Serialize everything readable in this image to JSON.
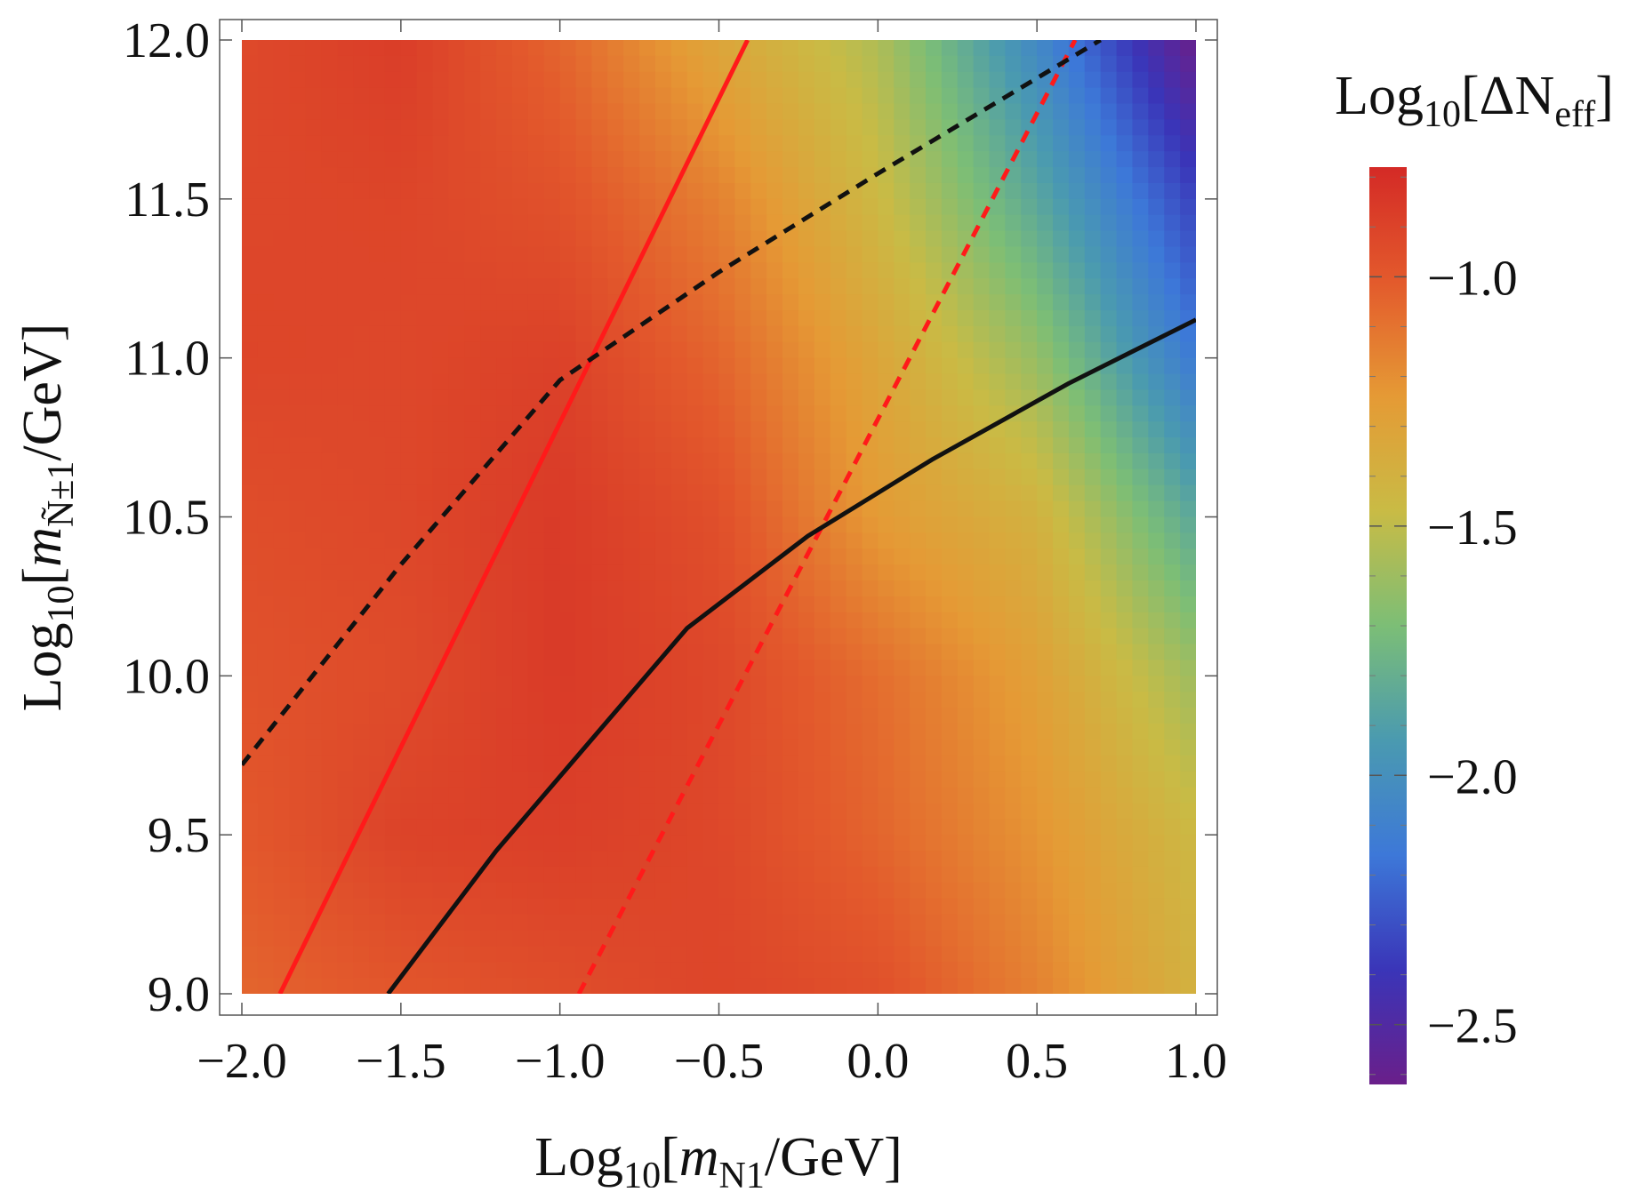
{
  "chart_data": {
    "type": "heatmap",
    "x_axis": {
      "label_parts": [
        "Log",
        "10",
        "[",
        "m",
        "N1",
        "/GeV]"
      ],
      "range": [
        -2.0,
        1.0
      ],
      "ticks": [
        -2.0,
        -1.5,
        -1.0,
        -0.5,
        0.0,
        0.5,
        1.0
      ],
      "tick_labels": [
        "−2.0",
        "−1.5",
        "−1.0",
        "−0.5",
        "0.0",
        "0.5",
        "1.0"
      ]
    },
    "y_axis": {
      "label_parts": [
        "Log",
        "10",
        "[",
        "m",
        "Ñ±1",
        "/GeV]"
      ],
      "range": [
        9.0,
        12.0
      ],
      "ticks": [
        9.0,
        9.5,
        10.0,
        10.5,
        11.0,
        11.5,
        12.0
      ],
      "tick_labels": [
        "9.0",
        "9.5",
        "10.0",
        "10.5",
        "11.0",
        "11.5",
        "12.0"
      ]
    },
    "colorbar": {
      "title_parts": [
        "Log",
        "10",
        "[ΔN",
        "eff",
        "]"
      ],
      "range": [
        -2.62,
        -0.78
      ],
      "ticks": [
        -1.0,
        -1.5,
        -2.0,
        -2.5
      ],
      "tick_labels": [
        "−1.0",
        "−1.5",
        "−2.0",
        "−2.5"
      ],
      "colormap": [
        "#6a1f8a",
        "#3a35b8",
        "#3d78d8",
        "#4a9ab0",
        "#7cbe76",
        "#c9bb45",
        "#e59a35",
        "#e35a2c",
        "#d42a26"
      ]
    },
    "heatmap_grid": {
      "x": [
        -2.0,
        -1.5,
        -1.0,
        -0.5,
        0.0,
        0.5,
        1.0
      ],
      "y": [
        12.0,
        11.5,
        11.0,
        10.5,
        10.0,
        9.5,
        9.0
      ],
      "z": [
        [
          -0.93,
          -0.87,
          -1.05,
          -1.32,
          -1.55,
          -2.05,
          -2.62
        ],
        [
          -0.92,
          -0.91,
          -0.97,
          -1.15,
          -1.45,
          -1.85,
          -2.35
        ],
        [
          -0.91,
          -0.92,
          -0.89,
          -1.05,
          -1.32,
          -1.62,
          -2.15
        ],
        [
          -0.95,
          -0.92,
          -0.86,
          -0.96,
          -1.25,
          -1.4,
          -1.85
        ],
        [
          -0.97,
          -0.94,
          -0.86,
          -0.92,
          -1.08,
          -1.28,
          -1.6
        ],
        [
          -1.0,
          -0.9,
          -0.88,
          -0.92,
          -1.05,
          -1.22,
          -1.45
        ],
        [
          -1.05,
          -0.99,
          -0.95,
          -0.91,
          -0.96,
          -1.15,
          -1.4
        ]
      ]
    },
    "series": [
      {
        "style": "solid",
        "color": "#ff1a1a",
        "x": [
          -1.88,
          -0.41
        ],
        "y": [
          9.0,
          12.0
        ]
      },
      {
        "style": "dashed",
        "color": "#ff1a1a",
        "x": [
          -0.94,
          0.62
        ],
        "y": [
          9.0,
          12.0
        ]
      },
      {
        "style": "dashed",
        "color": "#111111",
        "x": [
          -2.0,
          -1.5,
          -1.0,
          -0.5,
          0.0,
          0.5,
          0.7
        ],
        "y": [
          9.72,
          10.35,
          10.93,
          11.27,
          11.58,
          11.88,
          12.0
        ]
      },
      {
        "style": "solid",
        "color": "#111111",
        "x": [
          -1.54,
          -1.2,
          -0.9,
          -0.6,
          -0.22,
          0.17,
          0.6,
          1.0
        ],
        "y": [
          9.0,
          9.45,
          9.8,
          10.15,
          10.44,
          10.68,
          10.92,
          11.12
        ]
      }
    ]
  }
}
